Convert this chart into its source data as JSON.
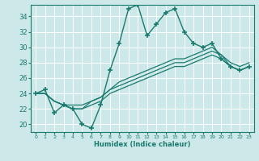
{
  "xlabel": "Humidex (Indice chaleur)",
  "xlim": [
    -0.5,
    23.5
  ],
  "ylim": [
    19,
    35.5
  ],
  "yticks": [
    20,
    22,
    24,
    26,
    28,
    30,
    32,
    34
  ],
  "xticks": [
    0,
    1,
    2,
    3,
    4,
    5,
    6,
    7,
    8,
    9,
    10,
    11,
    12,
    13,
    14,
    15,
    16,
    17,
    18,
    19,
    20,
    21,
    22,
    23
  ],
  "bg_color": "#cce8e8",
  "grid_color": "#b0d8d8",
  "line_color": "#1a7a6e",
  "series": [
    {
      "x": [
        0,
        1,
        2,
        3,
        4,
        5,
        6,
        7,
        8,
        9,
        10,
        11,
        12,
        13,
        14,
        15,
        16,
        17,
        18,
        19,
        20,
        21,
        22,
        23
      ],
      "y": [
        24,
        24.5,
        21.5,
        22.5,
        22,
        20,
        19.5,
        22.5,
        27,
        30.5,
        35,
        35.5,
        31.5,
        33,
        34.5,
        35,
        32,
        30.5,
        30,
        30.5,
        28.5,
        27.5,
        27,
        27.5
      ],
      "marker": "+",
      "linestyle": "-",
      "linewidth": 1.0
    },
    {
      "x": [
        0,
        1,
        2,
        3,
        4,
        5,
        6,
        7,
        8,
        9,
        10,
        11,
        12,
        13,
        14,
        15,
        16,
        17,
        18,
        19,
        20,
        21,
        22,
        23
      ],
      "y": [
        24,
        24,
        23,
        22.5,
        22.5,
        22.5,
        23,
        23.5,
        24.5,
        25.5,
        26,
        26.5,
        27,
        27.5,
        28,
        28.5,
        28.5,
        29,
        29.5,
        30,
        29,
        28,
        27.5,
        28
      ],
      "marker": null,
      "linestyle": "-",
      "linewidth": 0.9
    },
    {
      "x": [
        0,
        1,
        2,
        3,
        4,
        5,
        6,
        7,
        8,
        9,
        10,
        11,
        12,
        13,
        14,
        15,
        16,
        17,
        18,
        19,
        20,
        21,
        22,
        23
      ],
      "y": [
        24,
        24,
        23,
        22.5,
        22,
        22,
        22.5,
        23,
        24,
        24.5,
        25,
        25.5,
        26,
        26.5,
        27,
        27.5,
        27.5,
        28,
        28.5,
        29,
        28.5,
        27.5,
        27,
        27.5
      ],
      "marker": null,
      "linestyle": "-",
      "linewidth": 0.9
    },
    {
      "x": [
        0,
        1,
        2,
        3,
        4,
        5,
        6,
        7,
        8,
        9,
        10,
        11,
        12,
        13,
        14,
        15,
        16,
        17,
        18,
        19,
        20,
        21,
        22,
        23
      ],
      "y": [
        24,
        24,
        23,
        22.5,
        22,
        22,
        23,
        23.5,
        24.5,
        25,
        25.5,
        26,
        26.5,
        27,
        27.5,
        28,
        28,
        28.5,
        29,
        29.5,
        29,
        27.5,
        27,
        27.5
      ],
      "marker": null,
      "linestyle": "-",
      "linewidth": 0.9
    }
  ]
}
